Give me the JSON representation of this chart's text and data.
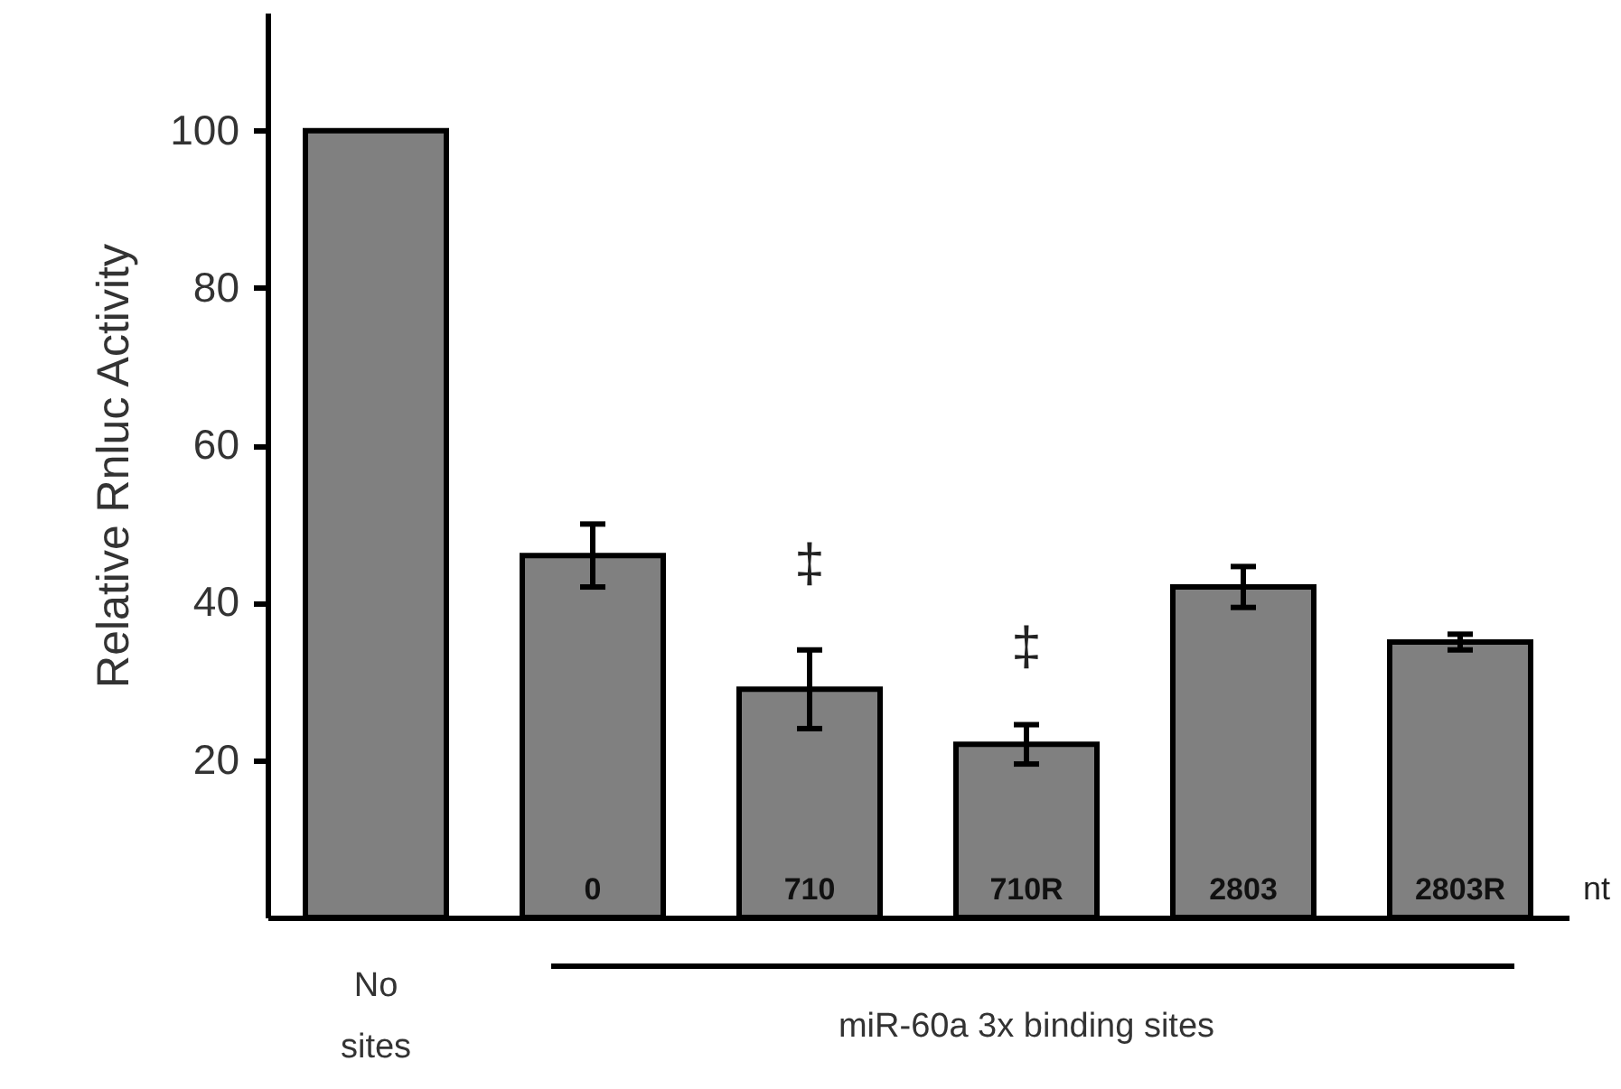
{
  "chart_data": {
    "type": "bar",
    "ylabel": "Relative Rnluc Activity",
    "xlabel": "miR-60a 3x binding sites",
    "categories": [
      "No sites",
      "0",
      "710",
      "710R",
      "2803",
      "2803R"
    ],
    "values": [
      100,
      46,
      29,
      22,
      42,
      35
    ],
    "errors": [
      null,
      4,
      5,
      2.5,
      2.6,
      1
    ],
    "color": "#808080",
    "ylim": [
      0,
      115
    ],
    "yticks": [
      20,
      40,
      60,
      80,
      100
    ],
    "annotations": [
      "‡",
      "‡",
      "nt"
    ]
  }
}
